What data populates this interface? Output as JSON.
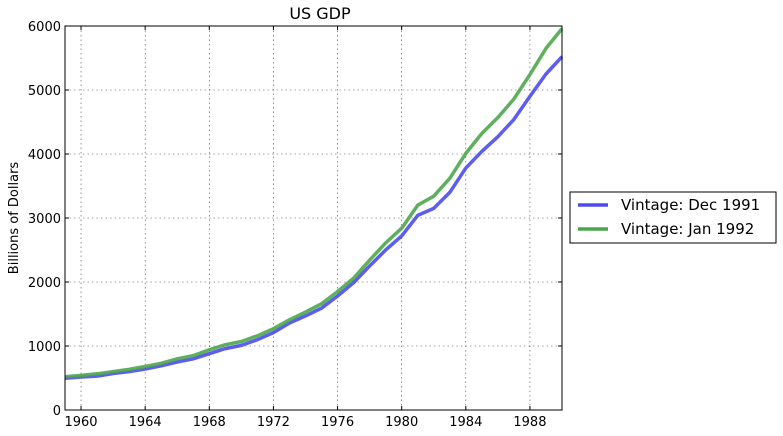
{
  "chart_data": {
    "type": "line",
    "title": "US GDP",
    "xlabel": "",
    "ylabel": "Billions of Dollars",
    "xlim": [
      1959,
      1990
    ],
    "ylim": [
      0,
      6000
    ],
    "xticks": [
      1960,
      1964,
      1968,
      1972,
      1976,
      1980,
      1984,
      1988
    ],
    "yticks": [
      0,
      1000,
      2000,
      3000,
      4000,
      5000,
      6000
    ],
    "grid": true,
    "legend_position": "outside-right",
    "x": [
      1959,
      1960,
      1961,
      1962,
      1963,
      1964,
      1965,
      1966,
      1967,
      1968,
      1969,
      1970,
      1971,
      1972,
      1973,
      1974,
      1975,
      1976,
      1977,
      1978,
      1979,
      1980,
      1981,
      1982,
      1983,
      1984,
      1985,
      1986,
      1987,
      1988,
      1989,
      1990
    ],
    "series": [
      {
        "name": "Vintage: Dec 1991",
        "color": "#4b4bf0",
        "values": [
          495,
          515,
          530,
          570,
          600,
          640,
          690,
          750,
          800,
          880,
          960,
          1010,
          1100,
          1210,
          1360,
          1470,
          1590,
          1780,
          1990,
          2250,
          2500,
          2720,
          3040,
          3150,
          3400,
          3780,
          4040,
          4270,
          4540,
          4900,
          5250,
          5520
        ]
      },
      {
        "name": "Vintage: Jan 1992",
        "color": "#4ca64c",
        "values": [
          520,
          540,
          565,
          600,
          635,
          680,
          730,
          800,
          850,
          940,
          1020,
          1070,
          1160,
          1270,
          1410,
          1530,
          1660,
          1850,
          2060,
          2340,
          2610,
          2840,
          3200,
          3340,
          3620,
          4010,
          4320,
          4570,
          4860,
          5240,
          5650,
          5960
        ]
      }
    ]
  }
}
